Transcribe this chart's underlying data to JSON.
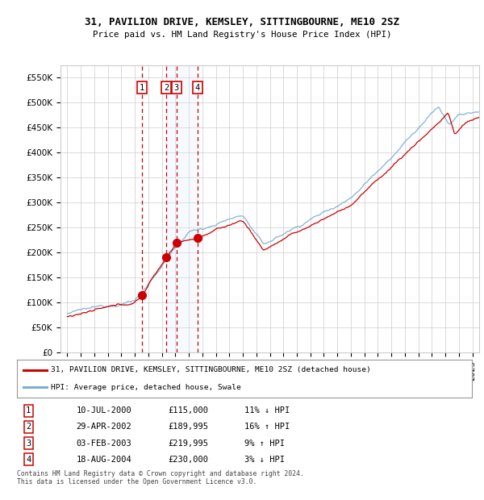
{
  "title": "31, PAVILION DRIVE, KEMSLEY, SITTINGBOURNE, ME10 2SZ",
  "subtitle": "Price paid vs. HM Land Registry's House Price Index (HPI)",
  "ylim": [
    0,
    575000
  ],
  "xlim_start": 1994.5,
  "xlim_end": 2025.5,
  "sales": [
    {
      "label": "1",
      "date": "10-JUL-2000",
      "price": 115000,
      "year": 2000.53,
      "hpi_diff": "11% ↓ HPI"
    },
    {
      "label": "2",
      "date": "29-APR-2002",
      "price": 189995,
      "year": 2002.32,
      "hpi_diff": "16% ↑ HPI"
    },
    {
      "label": "3",
      "date": "03-FEB-2003",
      "price": 219995,
      "year": 2003.09,
      "hpi_diff": "9% ↑ HPI"
    },
    {
      "label": "4",
      "date": "18-AUG-2004",
      "price": 230000,
      "year": 2004.63,
      "hpi_diff": "3% ↓ HPI"
    }
  ],
  "shade_span": [
    2002.32,
    2003.09
  ],
  "legend_label_red": "31, PAVILION DRIVE, KEMSLEY, SITTINGBOURNE, ME10 2SZ (detached house)",
  "legend_label_blue": "HPI: Average price, detached house, Swale",
  "footer": "Contains HM Land Registry data © Crown copyright and database right 2024.\nThis data is licensed under the Open Government Licence v3.0.",
  "red_color": "#cc0000",
  "blue_color": "#7bafd4",
  "shade_color": "#ddeeff",
  "grid_color": "#cccccc",
  "background_color": "#ffffff",
  "ytick_vals": [
    0,
    50000,
    100000,
    150000,
    200000,
    250000,
    300000,
    350000,
    400000,
    450000,
    500000,
    550000
  ],
  "ytick_labels": [
    "£0",
    "£50K",
    "£100K",
    "£150K",
    "£200K",
    "£250K",
    "£300K",
    "£350K",
    "£400K",
    "£450K",
    "£500K",
    "£550K"
  ]
}
